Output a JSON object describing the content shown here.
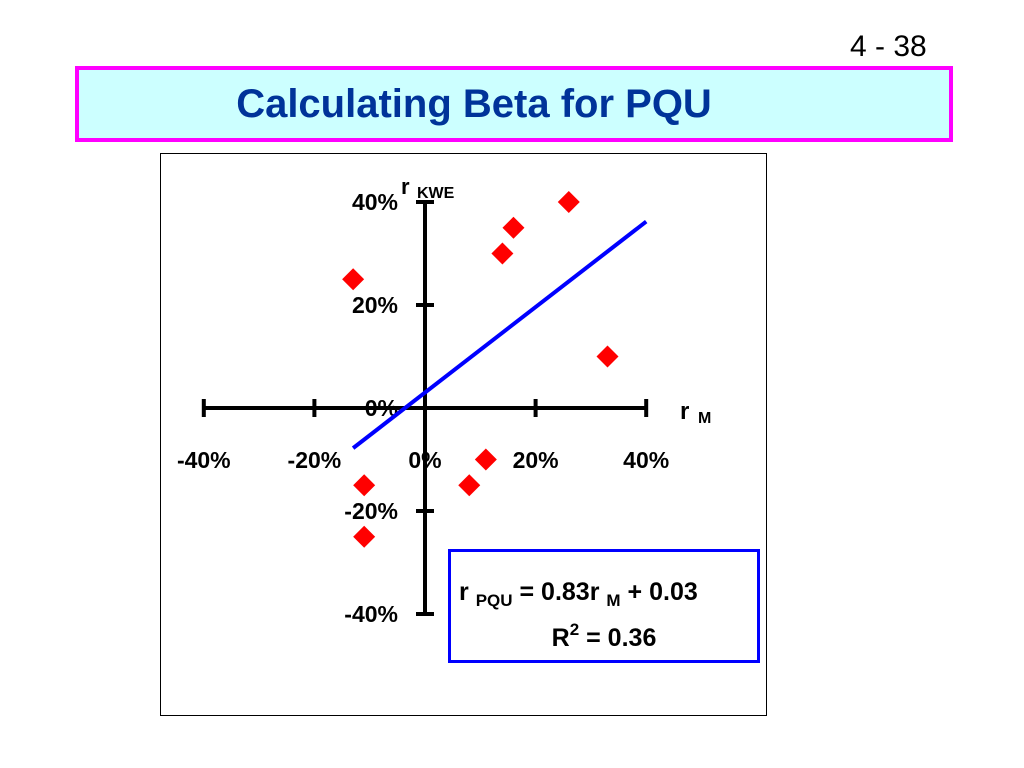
{
  "slide": {
    "number": "4 - 38",
    "title": "Calculating Beta for PQU"
  },
  "colors": {
    "title_text": "#003399",
    "title_background": "#ccffff",
    "title_border": "#ff00ff",
    "point": "#ff0000",
    "regression_line": "#0000ff",
    "equation_border": "#0000ff"
  },
  "chart_data": {
    "type": "scatter",
    "title": "Calculating Beta for PQU",
    "xlabel": {
      "main": "r",
      "sub": "M"
    },
    "ylabel": {
      "main": "r",
      "sub": "KWE"
    },
    "xlim": [
      -40,
      40
    ],
    "ylim": [
      -40,
      40
    ],
    "x_ticks": [
      {
        "value": -40,
        "label": "-40%"
      },
      {
        "value": -20,
        "label": "-20%"
      },
      {
        "value": 0,
        "label": "0%"
      },
      {
        "value": 20,
        "label": "20%"
      },
      {
        "value": 40,
        "label": "40%"
      }
    ],
    "y_ticks": [
      {
        "value": 40,
        "label": "40%"
      },
      {
        "value": 20,
        "label": "20%"
      },
      {
        "value": 0,
        "label": "0%"
      },
      {
        "value": -20,
        "label": "-20%"
      },
      {
        "value": -40,
        "label": "-40%"
      }
    ],
    "points": [
      {
        "x": 26,
        "y": 40
      },
      {
        "x": 16,
        "y": 35
      },
      {
        "x": 14,
        "y": 30
      },
      {
        "x": -13,
        "y": 25
      },
      {
        "x": 33,
        "y": 10
      },
      {
        "x": 11,
        "y": -10
      },
      {
        "x": -11,
        "y": -15
      },
      {
        "x": 8,
        "y": -15
      },
      {
        "x": -11,
        "y": -25
      }
    ],
    "regression_line": {
      "x_start": -13,
      "x_end": 40
    },
    "grid": false,
    "legend": "none",
    "marker": "diamond",
    "equation": {
      "lhs_var": "r",
      "lhs_sub": "PQU",
      "op1": "=",
      "slope": "0.83",
      "rhs_var": "r",
      "rhs_sub": "M",
      "op2": "+",
      "intercept": "0.03",
      "r2_var": "R",
      "r2_exp": "2",
      "r2_rest": "= 0.36"
    }
  }
}
